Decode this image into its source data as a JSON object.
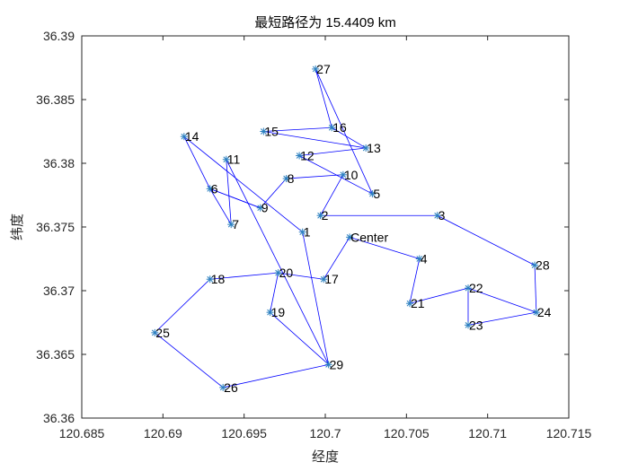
{
  "colors": {
    "route": "#0000ff",
    "marker": "#2a7fbf",
    "axis": "#262626"
  },
  "chart_data": {
    "type": "line",
    "title": "最短路径为 15.4409 km",
    "xlabel": "经度",
    "ylabel": "纬度",
    "xlim": [
      120.685,
      120.715
    ],
    "ylim": [
      36.36,
      36.39
    ],
    "xticks": [
      "120.685",
      "120.69",
      "120.695",
      "120.7",
      "120.705",
      "120.71",
      "120.715"
    ],
    "yticks": [
      "36.36",
      "36.365",
      "36.37",
      "36.375",
      "36.38",
      "36.385",
      "36.39"
    ],
    "grid": false,
    "marker": "*",
    "points": [
      {
        "label": "Center",
        "x": 120.7015,
        "y": 36.3742
      },
      {
        "label": "1",
        "x": 120.6986,
        "y": 36.3746
      },
      {
        "label": "2",
        "x": 120.6997,
        "y": 36.3759
      },
      {
        "label": "3",
        "x": 120.7069,
        "y": 36.3759
      },
      {
        "label": "4",
        "x": 120.7058,
        "y": 36.3725
      },
      {
        "label": "5",
        "x": 120.7029,
        "y": 36.3776
      },
      {
        "label": "6",
        "x": 120.6929,
        "y": 36.378
      },
      {
        "label": "7",
        "x": 120.6942,
        "y": 36.3752
      },
      {
        "label": "8",
        "x": 120.6976,
        "y": 36.3788
      },
      {
        "label": "9",
        "x": 120.696,
        "y": 36.3765
      },
      {
        "label": "10",
        "x": 120.7011,
        "y": 36.3791
      },
      {
        "label": "11",
        "x": 120.6939,
        "y": 36.3803
      },
      {
        "label": "12",
        "x": 120.6984,
        "y": 36.3806
      },
      {
        "label": "13",
        "x": 120.7025,
        "y": 36.3812
      },
      {
        "label": "14",
        "x": 120.6913,
        "y": 36.3821
      },
      {
        "label": "15",
        "x": 120.6962,
        "y": 36.3825
      },
      {
        "label": "16",
        "x": 120.7004,
        "y": 36.3828
      },
      {
        "label": "17",
        "x": 120.6999,
        "y": 36.3709
      },
      {
        "label": "18",
        "x": 120.6929,
        "y": 36.3709
      },
      {
        "label": "19",
        "x": 120.6966,
        "y": 36.3683
      },
      {
        "label": "20",
        "x": 120.6971,
        "y": 36.3714
      },
      {
        "label": "21",
        "x": 120.7052,
        "y": 36.369
      },
      {
        "label": "22",
        "x": 120.7088,
        "y": 36.3702
      },
      {
        "label": "23",
        "x": 120.7088,
        "y": 36.3673
      },
      {
        "label": "24",
        "x": 120.713,
        "y": 36.3683
      },
      {
        "label": "25",
        "x": 120.6895,
        "y": 36.3667
      },
      {
        "label": "26",
        "x": 120.6937,
        "y": 36.3624
      },
      {
        "label": "27",
        "x": 120.6994,
        "y": 36.3874
      },
      {
        "label": "28",
        "x": 120.7129,
        "y": 36.372
      },
      {
        "label": "29",
        "x": 120.7002,
        "y": 36.3642
      }
    ],
    "route": [
      "Center",
      "4",
      "21",
      "22",
      "24",
      "28",
      "3",
      "2",
      "10",
      "8",
      "9",
      "6",
      "7",
      "11",
      "29",
      "26",
      "25",
      "18",
      "20",
      "17",
      "Center"
    ],
    "route_segments": [
      [
        "1",
        "29"
      ],
      [
        "1",
        "14"
      ],
      [
        "14",
        "6"
      ],
      [
        "6",
        "9"
      ],
      [
        "15",
        "16"
      ],
      [
        "16",
        "13"
      ],
      [
        "13",
        "15"
      ],
      [
        "12",
        "5"
      ],
      [
        "5",
        "27"
      ],
      [
        "27",
        "16"
      ],
      [
        "12",
        "13"
      ],
      [
        "23",
        "24"
      ],
      [
        "23",
        "22"
      ],
      [
        "29",
        "19"
      ],
      [
        "19",
        "20"
      ]
    ]
  }
}
